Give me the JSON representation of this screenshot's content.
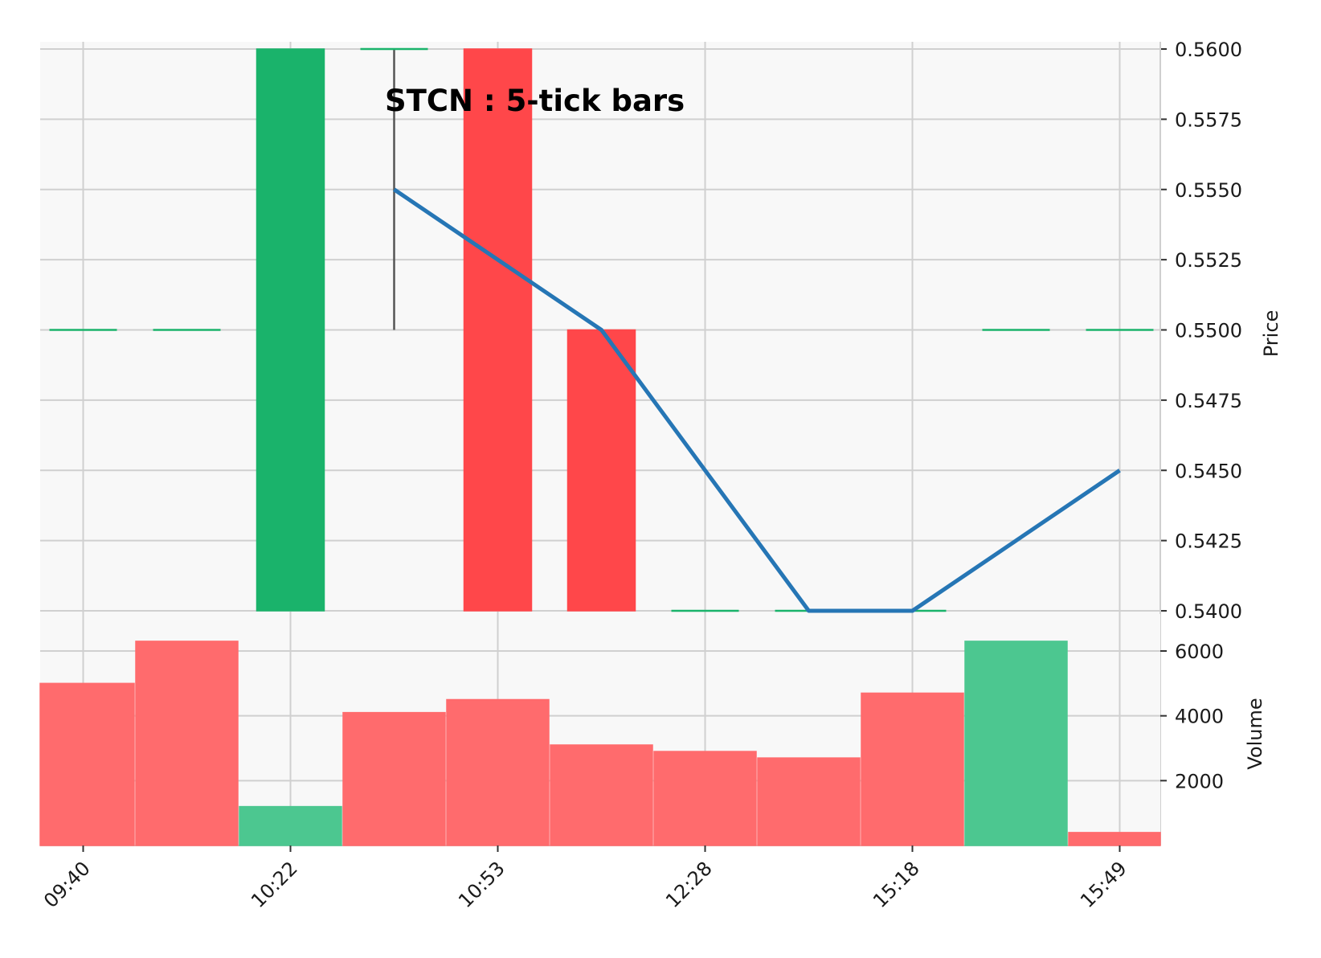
{
  "chart_data": {
    "type": "candlestick",
    "title": "STCN : 5-tick bars",
    "price_panel": {
      "ylabel": "Price",
      "ylim": [
        0.54,
        0.56
      ],
      "yticks": [
        "0.5400",
        "0.5425",
        "0.5450",
        "0.5475",
        "0.5500",
        "0.5525",
        "0.5550",
        "0.5575",
        "0.5600"
      ],
      "up_color": "#1ab36b",
      "down_color": "#ff474a",
      "wick_color": "#555555",
      "candles": [
        {
          "open": 0.55,
          "high": 0.55,
          "low": 0.55,
          "close": 0.55
        },
        {
          "open": 0.55,
          "high": 0.55,
          "low": 0.55,
          "close": 0.55
        },
        {
          "open": 0.54,
          "high": 0.56,
          "low": 0.54,
          "close": 0.56
        },
        {
          "open": 0.56,
          "high": 0.56,
          "low": 0.55,
          "close": 0.56
        },
        {
          "open": 0.56,
          "high": 0.56,
          "low": 0.54,
          "close": 0.54
        },
        {
          "open": 0.55,
          "high": 0.55,
          "low": 0.54,
          "close": 0.54
        },
        {
          "open": 0.54,
          "high": 0.54,
          "low": 0.54,
          "close": 0.54
        },
        {
          "open": 0.54,
          "high": 0.54,
          "low": 0.54,
          "close": 0.54
        },
        {
          "open": 0.54,
          "high": 0.54,
          "low": 0.54,
          "close": 0.54
        },
        {
          "open": 0.55,
          "high": 0.55,
          "low": 0.55,
          "close": 0.55
        },
        {
          "open": 0.55,
          "high": 0.55,
          "low": 0.55,
          "close": 0.55
        }
      ],
      "line_series": {
        "color": "#2676b5",
        "points": [
          [
            3,
            0.555
          ],
          [
            5,
            0.55
          ],
          [
            7,
            0.54
          ],
          [
            8,
            0.54
          ],
          [
            10,
            0.545
          ]
        ]
      }
    },
    "volume_panel": {
      "ylabel": "Volume",
      "ylim": [
        0,
        6800
      ],
      "yticks": [
        "2000",
        "4000",
        "6000"
      ],
      "up_color": "#4cc790",
      "down_color": "#ff6b6d",
      "values": [
        5000,
        6300,
        1200,
        4100,
        4500,
        3100,
        2900,
        2700,
        4700,
        6300,
        400
      ],
      "directions": [
        "down",
        "down",
        "up",
        "down",
        "down",
        "down",
        "down",
        "down",
        "down",
        "up",
        "down"
      ]
    },
    "x_ticks": [
      {
        "index": 0,
        "label": "09:40"
      },
      {
        "index": 2,
        "label": "10:22"
      },
      {
        "index": 4,
        "label": "10:53"
      },
      {
        "index": 6,
        "label": "12:28"
      },
      {
        "index": 8,
        "label": "15:18"
      },
      {
        "index": 10,
        "label": "15:49"
      }
    ],
    "grid": true,
    "plot_background": "#f8f8f8",
    "grid_color": "#d0d0d0"
  }
}
